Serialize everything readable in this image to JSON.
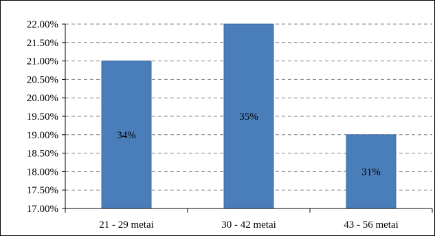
{
  "chart_data": {
    "type": "bar",
    "categories": [
      "21 - 29 metai",
      "30 - 42 metai",
      "43 - 56 metai"
    ],
    "values": [
      21.0,
      22.0,
      19.0
    ],
    "data_labels": [
      "34%",
      "35%",
      "31%"
    ],
    "y_tick_labels": [
      "17.00%",
      "17.50%",
      "18.00%",
      "18.50%",
      "19.00%",
      "19.50%",
      "20.00%",
      "20.50%",
      "21.00%",
      "21.50%",
      "22.00%"
    ],
    "ylim": [
      17.0,
      22.0
    ],
    "ytick_step": 0.5,
    "grid": true,
    "grid_style": "dashed",
    "legend": "none",
    "title": "",
    "xlabel": "",
    "ylabel": "",
    "colors": {
      "bar": "#4a7ebb",
      "bar_edge": "#3c6aa3",
      "grid": "#7f7f7f",
      "axis": "#000000",
      "text": "#000000"
    }
  }
}
